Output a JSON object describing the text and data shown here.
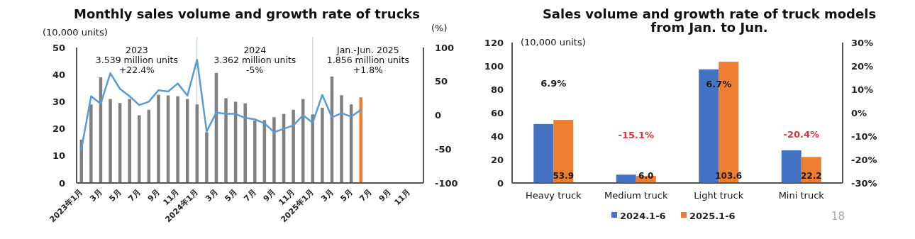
{
  "chart_data": [
    {
      "type": "bar",
      "title": "Monthly sales volume and growth rate of trucks",
      "ylabel": "(10,000 units)",
      "y2label": "(%)",
      "categories": [
        "2023年1月",
        null,
        "3月",
        null,
        "5月",
        null,
        "7月",
        null,
        "9月",
        null,
        "11月",
        null,
        "2024年1月",
        null,
        "3月",
        null,
        "5月",
        null,
        "7月",
        null,
        "9月",
        null,
        "11月",
        null,
        "2025年1月",
        null,
        "3月",
        null,
        "5月",
        null,
        "7月",
        null,
        "9月",
        null,
        "11月",
        null
      ],
      "series": [
        {
          "colors": [
            "#808080",
            "#808080",
            "#808080",
            "#808080",
            "#808080",
            "#808080",
            "#808080",
            "#808080",
            "#808080",
            "#808080",
            "#808080",
            "#808080",
            "#808080",
            "#808080",
            "#808080",
            "#808080",
            "#808080",
            "#808080",
            "#808080",
            "#808080",
            "#808080",
            "#808080",
            "#808080",
            "#808080",
            "#808080",
            "#808080",
            "#808080",
            "#808080",
            "#808080",
            "#ed7d31",
            null,
            null,
            null,
            null,
            null,
            null
          ],
          "values": [
            16,
            29,
            39,
            31,
            29.5,
            31,
            25,
            27,
            32.6,
            32.3,
            32,
            31,
            29,
            18.7,
            40.6,
            31.3,
            30,
            29.4,
            23,
            23.2,
            24.3,
            25.5,
            27,
            31,
            25.3,
            27.8,
            39.3,
            32.4,
            29,
            31.6,
            null,
            null,
            null,
            null,
            null,
            null
          ]
        },
        {
          "type": "line",
          "axis": "y2",
          "color": "#5b9bd5",
          "values": [
            -50,
            28,
            17,
            62,
            39,
            28,
            15,
            20,
            37,
            35,
            47,
            29,
            82,
            -24,
            4,
            2,
            2,
            -4,
            -6,
            -12,
            -25,
            -20,
            -15,
            0,
            -11,
            30,
            -3,
            3,
            -2,
            8,
            null,
            null,
            null,
            null,
            null,
            null
          ]
        }
      ],
      "ylim": [
        0,
        50
      ],
      "yticks": [
        0,
        10,
        20,
        30,
        40,
        50
      ],
      "y2lim": [
        -100,
        100
      ],
      "y2ticks": [
        -100,
        -50,
        0,
        50,
        100
      ],
      "ref_lines": [
        {
          "axis": "x",
          "value": "2024年1月",
          "color": "#b8c8d6"
        },
        {
          "axis": "x",
          "value": "2025年1月",
          "color": "#b8c8d6"
        }
      ],
      "annotations": [
        "2023\n3.539 million units\n+22.4%",
        "2024\n3.362 million units\n-5%",
        "Jan.-Jun. 2025\n1.856 million units\n+1.8%"
      ]
    },
    {
      "type": "bar",
      "title": "Sales volume and growth rate of truck models from Jan. to Jun.",
      "ylabel": "(10,000 units)",
      "categories": [
        "Heavy truck",
        "Medium truck",
        "Light truck",
        "Mini truck"
      ],
      "series": [
        {
          "name": "2024.1-6",
          "color": "#4472c4",
          "values": [
            50.4,
            7.1,
            97.1,
            27.9
          ]
        },
        {
          "name": "2025.1-6",
          "color": "#ed7d31",
          "values": [
            53.9,
            6.0,
            103.6,
            22.2
          ],
          "value_labels": [
            "53.9",
            "6.0",
            "103.6",
            "22.2"
          ]
        }
      ],
      "ylim": [
        0,
        120
      ],
      "yticks": [
        0,
        20,
        40,
        60,
        80,
        100,
        120
      ],
      "y2lim": [
        -30,
        30
      ],
      "y2ticks": [
        {
          "value": -30,
          "label": "-30%"
        },
        {
          "value": -20,
          "label": "-20%"
        },
        {
          "value": -10,
          "label": "-10%"
        },
        {
          "value": 0,
          "label": "0%"
        },
        {
          "value": 10,
          "label": "10%"
        },
        {
          "value": 20,
          "label": "20%"
        },
        {
          "value": 30,
          "label": "30%"
        }
      ],
      "legend": "bottom",
      "annotations": [
        "6.9%",
        "-15.1%",
        "6.7%",
        "-20.4%",
        "18"
      ]
    }
  ]
}
